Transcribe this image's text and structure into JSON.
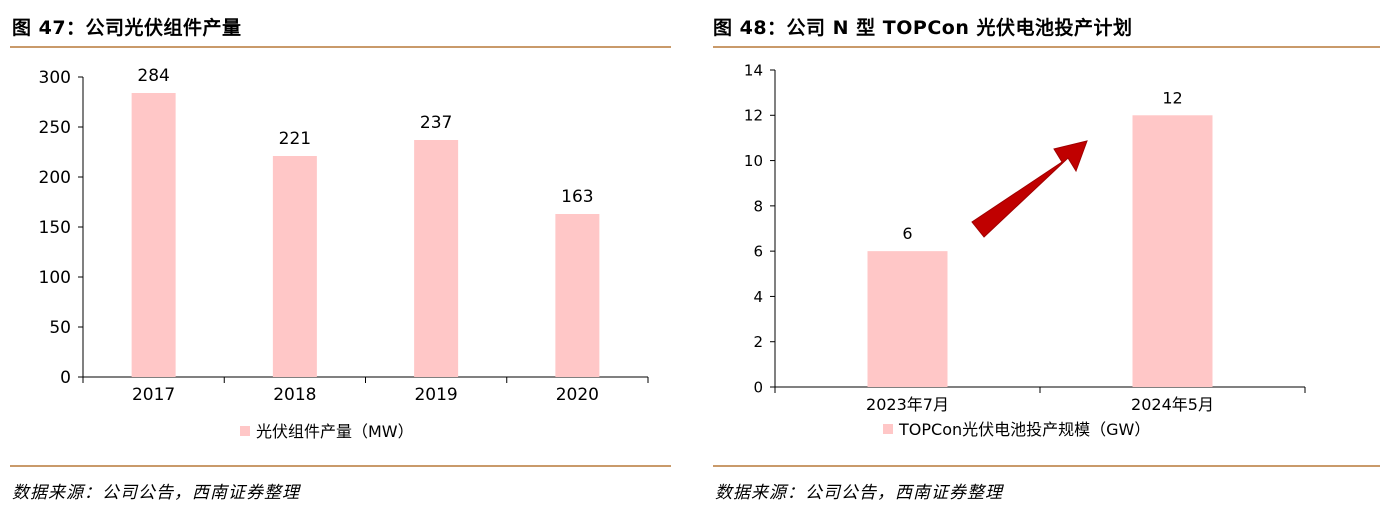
{
  "colors": {
    "bar": "#ffc7c7",
    "rule": "#c99a6a",
    "arrow": "#c00000",
    "axis": "#000000"
  },
  "figures": [
    {
      "title": "图 47：公司光伏组件产量",
      "source": "数据来源：公司公告，西南证券整理",
      "legend": "光伏组件产量（MW）"
    },
    {
      "title": "图 48：公司 N 型 TOPCon 光伏电池投产计划",
      "source": "数据来源：公司公告，西南证券整理",
      "legend": "TOPCon光伏电池投产规模（GW）",
      "annotation": "red-up-right-arrow"
    }
  ],
  "chart_data": [
    {
      "type": "bar",
      "title": "",
      "categories": [
        "2017",
        "2018",
        "2019",
        "2020"
      ],
      "series": [
        {
          "name": "光伏组件产量（MW）",
          "values": [
            284,
            221,
            237,
            163
          ]
        }
      ],
      "ylim": [
        0,
        300
      ],
      "yticks": [
        0,
        50,
        100,
        150,
        200,
        250,
        300
      ],
      "grid": false,
      "legend": "bottom",
      "xlabel": "",
      "ylabel": ""
    },
    {
      "type": "bar",
      "title": "",
      "categories": [
        "2023年7月",
        "2024年5月"
      ],
      "series": [
        {
          "name": "TOPCon光伏电池投产规模（GW）",
          "values": [
            6,
            12
          ]
        }
      ],
      "ylim": [
        0,
        14
      ],
      "yticks": [
        0,
        2,
        4,
        6,
        8,
        10,
        12,
        14
      ],
      "grid": false,
      "legend": "bottom",
      "xlabel": "",
      "ylabel": ""
    }
  ]
}
